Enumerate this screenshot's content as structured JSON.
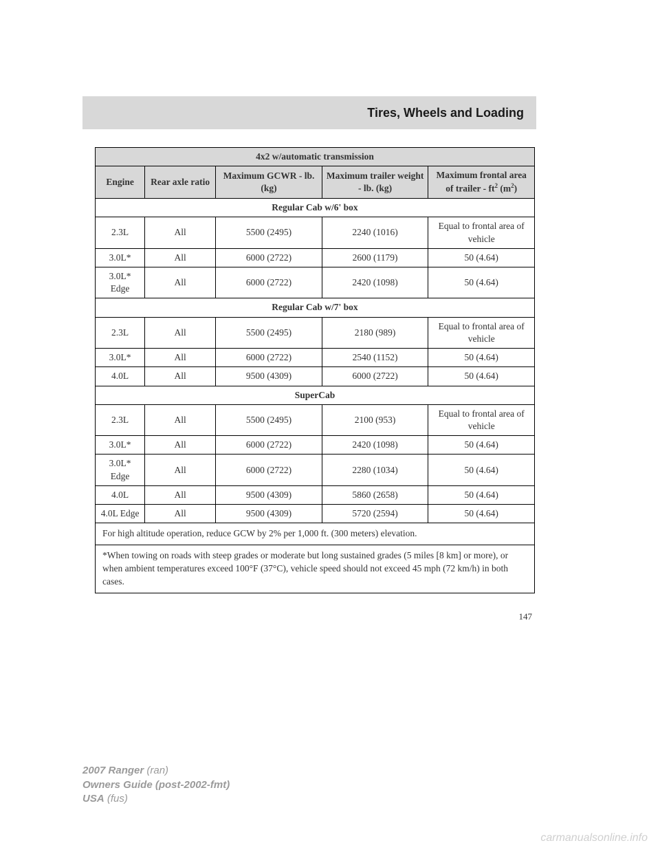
{
  "header": {
    "section_title": "Tires, Wheels and Loading"
  },
  "table": {
    "title": "4x2 w/automatic transmission",
    "headers": {
      "engine": "Engine",
      "ratio": "Rear axle ratio",
      "gcwr": "Maximum GCWR - lb. (kg)",
      "trailer": "Maximum trailer weight - lb. (kg)",
      "frontal_pre": "Maximum frontal area of trailer - ft",
      "frontal_sup1": "2",
      "frontal_mid": " (m",
      "frontal_sup2": "2",
      "frontal_post": ")"
    },
    "sections": [
      {
        "label": "Regular Cab w/6' box",
        "rows": [
          {
            "engine": "2.3L",
            "ratio": "All",
            "gcwr": "5500 (2495)",
            "trailer": "2240 (1016)",
            "frontal": "Equal to frontal area of vehicle"
          },
          {
            "engine": "3.0L*",
            "ratio": "All",
            "gcwr": "6000 (2722)",
            "trailer": "2600 (1179)",
            "frontal": "50 (4.64)"
          },
          {
            "engine": "3.0L* Edge",
            "ratio": "All",
            "gcwr": "6000 (2722)",
            "trailer": "2420 (1098)",
            "frontal": "50 (4.64)"
          }
        ]
      },
      {
        "label": "Regular Cab w/7' box",
        "rows": [
          {
            "engine": "2.3L",
            "ratio": "All",
            "gcwr": "5500 (2495)",
            "trailer": "2180 (989)",
            "frontal": "Equal to frontal area of vehicle"
          },
          {
            "engine": "3.0L*",
            "ratio": "All",
            "gcwr": "6000 (2722)",
            "trailer": "2540 (1152)",
            "frontal": "50 (4.64)"
          },
          {
            "engine": "4.0L",
            "ratio": "All",
            "gcwr": "9500 (4309)",
            "trailer": "6000 (2722)",
            "frontal": "50 (4.64)"
          }
        ]
      },
      {
        "label": "SuperCab",
        "rows": [
          {
            "engine": "2.3L",
            "ratio": "All",
            "gcwr": "5500 (2495)",
            "trailer": "2100 (953)",
            "frontal": "Equal to frontal area of vehicle"
          },
          {
            "engine": "3.0L*",
            "ratio": "All",
            "gcwr": "6000 (2722)",
            "trailer": "2420 (1098)",
            "frontal": "50 (4.64)"
          },
          {
            "engine": "3.0L* Edge",
            "ratio": "All",
            "gcwr": "6000 (2722)",
            "trailer": "2280 (1034)",
            "frontal": "50 (4.64)"
          },
          {
            "engine": "4.0L",
            "ratio": "All",
            "gcwr": "9500 (4309)",
            "trailer": "5860 (2658)",
            "frontal": "50 (4.64)"
          },
          {
            "engine": "4.0L Edge",
            "ratio": "All",
            "gcwr": "9500 (4309)",
            "trailer": "5720 (2594)",
            "frontal": "50 (4.64)"
          }
        ]
      }
    ],
    "footnotes": [
      "For high altitude operation, reduce GCW by 2% per 1,000 ft. (300 meters) elevation.",
      "*When towing on roads with steep grades or moderate but long sustained grades (5 miles [8 km] or more), or when ambient temperatures exceed 100°F (37°C), vehicle speed should not exceed 45 mph (72 km/h) in both cases."
    ]
  },
  "page_number": "147",
  "footer": {
    "line1_bold": "2007 Ranger",
    "line1_rest": " (ran)",
    "line2_bold": "Owners Guide (post-2002-fmt)",
    "line3_bold": "USA",
    "line3_rest": " (fus)"
  },
  "watermark": "carmanualsonline.info"
}
